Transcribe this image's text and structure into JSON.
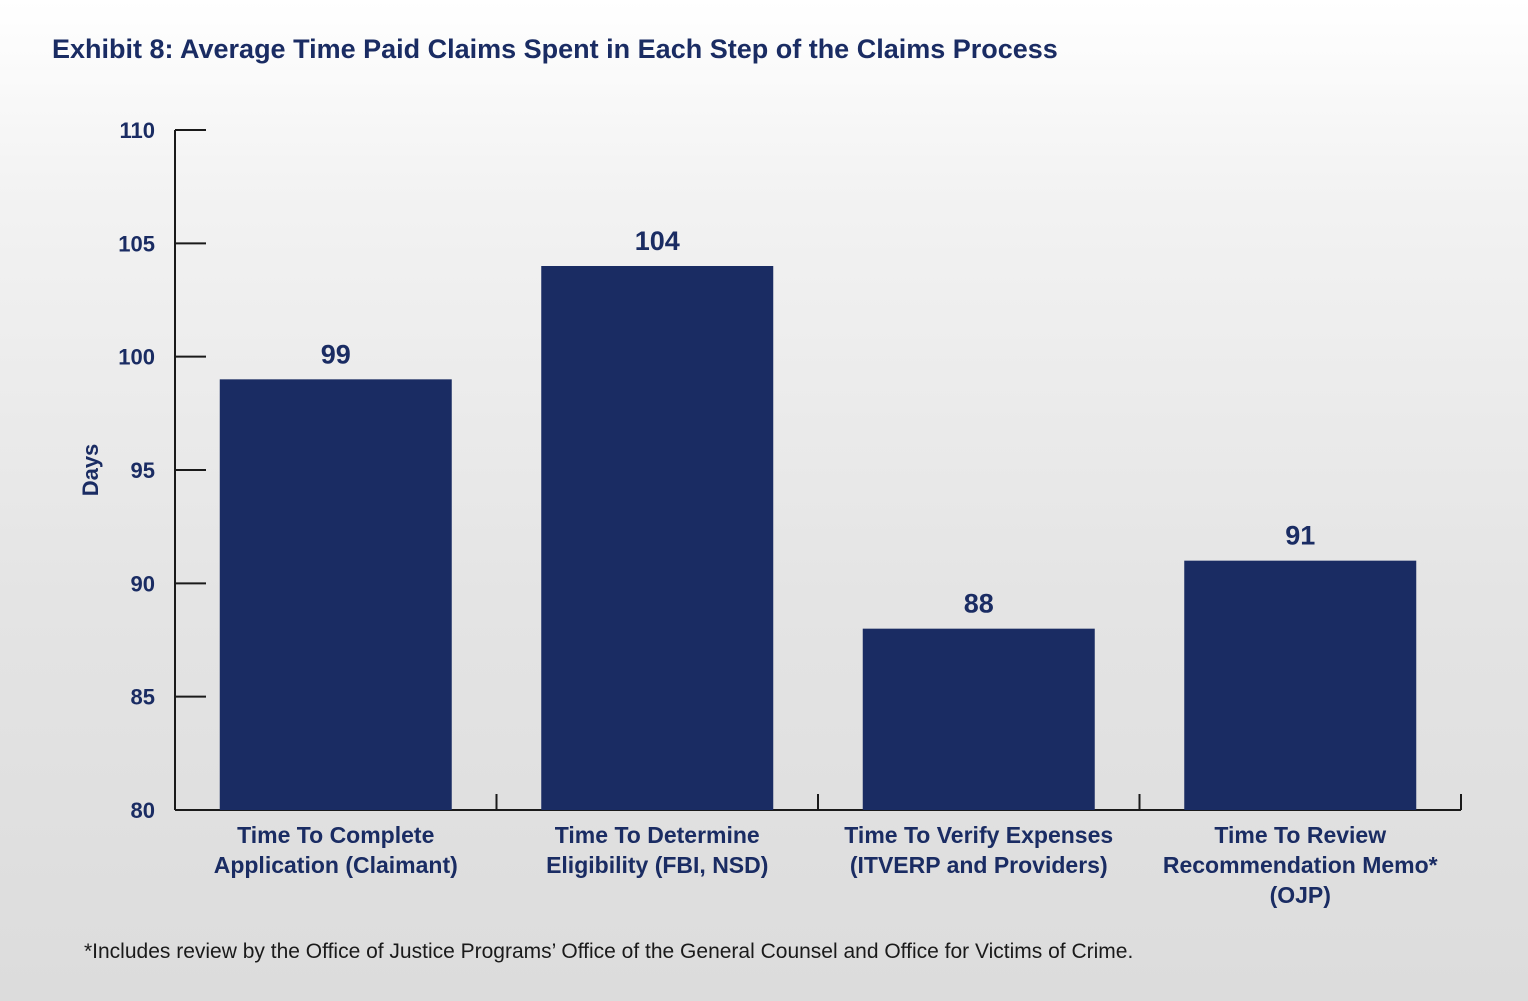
{
  "title": "Exhibit 8: Average Time Paid Claims Spent in Each Step of the Claims Process",
  "footnote": "*Includes review by the Office of Justice Programs’ Office of the General Counsel and Office for Victims of Crime.",
  "colors": {
    "bar": "#1a2c63",
    "text": "#1a2c63",
    "axis": "#1a1a1a"
  },
  "chart_data": {
    "type": "bar",
    "title": "Exhibit 8: Average Time Paid Claims Spent in Each Step of the Claims Process",
    "xlabel": "",
    "ylabel": "Days",
    "ylim": [
      80,
      110
    ],
    "yticks": [
      80,
      85,
      90,
      95,
      100,
      105,
      110
    ],
    "grid": false,
    "categories": [
      [
        "Time To Complete",
        "Application (Claimant)"
      ],
      [
        "Time To Determine",
        "Eligibility (FBI, NSD)"
      ],
      [
        "Time To Verify Expenses",
        "(ITVERP and Providers)"
      ],
      [
        "Time To Review",
        "Recommendation Memo*",
        "(OJP)"
      ]
    ],
    "values": [
      99,
      104,
      88,
      91
    ],
    "data_labels": [
      "99",
      "104",
      "88",
      "91"
    ]
  }
}
